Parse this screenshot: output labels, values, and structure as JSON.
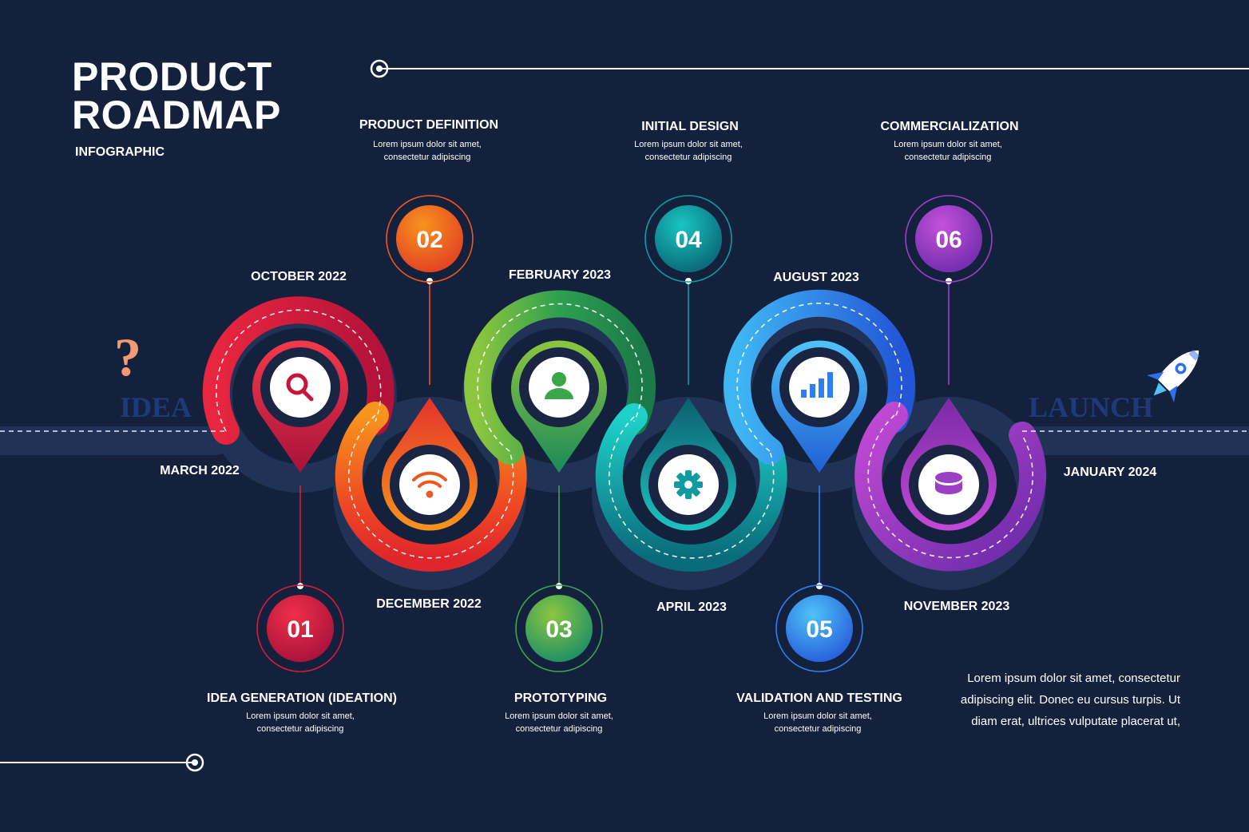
{
  "header": {
    "title_line1": "PRODUCT",
    "title_line2": "ROADMAP",
    "subtitle": "INFOGRAPHIC"
  },
  "start": {
    "word": "IDEA",
    "symbol": "?",
    "icon": "question-mark-icon"
  },
  "end": {
    "word": "LAUNCH",
    "icon": "rocket-icon"
  },
  "dates": [
    "MARCH 2022",
    "OCTOBER 2022",
    "DECEMBER 2022",
    "FEBRUARY 2023",
    "APRIL 2023",
    "AUGUST 2023",
    "NOVEMBER 2023",
    "JANUARY 2024"
  ],
  "steps": [
    {
      "number": "01",
      "title": "IDEA GENERATION (IDEATION)",
      "desc": "Lorem ipsum dolor sit amet, consectetur adipiscing",
      "icon": "search-icon",
      "color": "#d81b3c"
    },
    {
      "number": "02",
      "title": "PRODUCT DEFINITION",
      "desc": "Lorem ipsum dolor sit amet, consectetur adipiscing",
      "icon": "wifi-icon",
      "color": "#f0571f"
    },
    {
      "number": "03",
      "title": "PROTOTYPING",
      "desc": "Lorem ipsum dolor sit amet, consectetur adipiscing",
      "icon": "user-icon",
      "color": "#3aa64a"
    },
    {
      "number": "04",
      "title": "INITIAL DESIGN",
      "desc": "Lorem ipsum dolor sit amet, consectetur adipiscing",
      "icon": "gear-icon",
      "color": "#0e9ca0"
    },
    {
      "number": "05",
      "title": "VALIDATION AND TESTING",
      "desc": "Lorem ipsum dolor sit amet, consectetur adipiscing",
      "icon": "bar-chart-icon",
      "color": "#2e7ff0"
    },
    {
      "number": "06",
      "title": "COMMERCIALIZATION",
      "desc": "Lorem ipsum dolor sit amet, consectetur adipiscing",
      "icon": "database-icon",
      "color": "#9b3fc4"
    }
  ],
  "paragraph": "Lorem ipsum dolor sit amet, consectetur adipiscing elit. Donec eu cursus turpis. Ut diam erat, ultrices vulputate placerat ut,",
  "colors": {
    "background": "#14213d",
    "step1": "#d81b3c",
    "step2": "#f0571f",
    "step3": "#3aa64a",
    "step4": "#0e9ca0",
    "step5": "#2e7ff0",
    "step6": "#9b3fc4"
  }
}
